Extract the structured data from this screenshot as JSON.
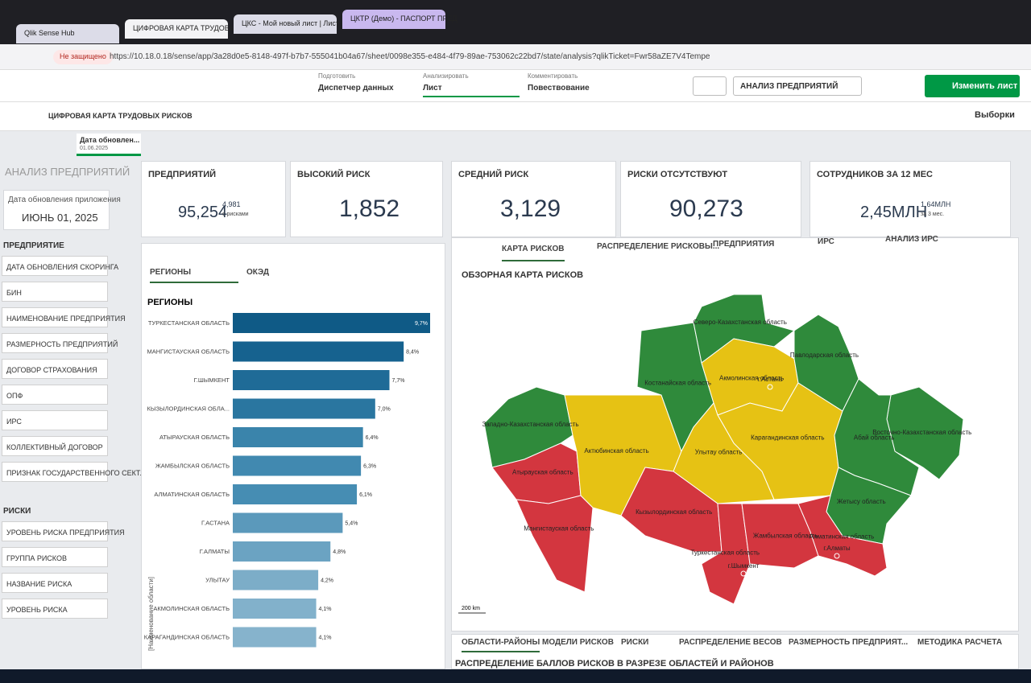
{
  "browser": {
    "tabs": [
      "Qlik Sense Hub",
      "ЦИФРОВАЯ КАРТА ТРУДОВЫ",
      "ЦКС - Мой новый лист | Лист",
      "ЦКТР (Демо) - ПАСПОРТ ПРЕД"
    ],
    "security": "Не защищено",
    "url": "https://10.18.0.18/sense/app/3a28d0e5-8148-497f-b7b7-555041b04a67/sheet/0098e355-e484-4f79-89ae-753062c22bd7/state/analysis?qlikTicket=Fwr58aZE7V4Tempe"
  },
  "toolbar": {
    "modes": [
      {
        "label": "Подготовить",
        "value": "Диспетчер данных"
      },
      {
        "label": "Анализировать",
        "value": "Лист"
      },
      {
        "label": "Комментировать",
        "value": "Повествование"
      }
    ],
    "sheet": "АНАЛИЗ ПРЕДПРИЯТИЙ",
    "edit": "Изменить лист",
    "selections": "Выборки"
  },
  "app": {
    "title": "ЦИФРОВАЯ КАРТА ТРУДОВЫХ РИСКОВ",
    "selection": {
      "field": "Дата обновлен...",
      "value": "01.06.2025"
    }
  },
  "sidebar": {
    "title": "АНАЛИЗ ПРЕДПРИЯТИЙ",
    "date_label": "Дата обновления приложения",
    "date": "ИЮНЬ 01, 2025",
    "groups": [
      {
        "title": "ПРЕДПРИЯТИЕ",
        "items": [
          "ДАТА ОБНОВЛЕНИЯ СКОРИНГА",
          "БИН",
          "НАИМЕНОВАНИЕ ПРЕДПРИЯТИЯ",
          "РАЗМЕРНОСТЬ ПРЕДПРИЯТИЙ",
          "ДОГОВОР СТРАХОВАНИЯ",
          "ОПФ",
          "ИРС",
          "КОЛЛЕКТИВНЫЙ ДОГОВОР",
          "ПРИЗНАК ГОСУДАРСТВЕННОГО СЕКТ..."
        ]
      },
      {
        "title": "РИСКИ",
        "items": [
          "УРОВЕНЬ РИСКА ПРЕДПРИЯТИЯ",
          "ГРУППА РИСКОВ",
          "НАЗВАНИЕ РИСКА",
          "УРОВЕНЬ РИСКА"
        ]
      }
    ]
  },
  "kpis": [
    {
      "title": "ПРЕДПРИЯТИЙ",
      "value": "95,254",
      "extra": "4,981",
      "extra_note": "с рисками"
    },
    {
      "title": "ВЫСОКИЙ РИСК",
      "value": "1,852"
    },
    {
      "title": "СРЕДНИЙ РИСК",
      "value": "3,129"
    },
    {
      "title": "РИСКИ ОТСУТСТВУЮТ",
      "value": "90,273"
    },
    {
      "title": "СОТРУДНИКОВ ЗА 12 МЕС",
      "value": "2,45МЛН",
      "extra": "1,64МЛН",
      "extra_note": "за 3 мес."
    }
  ],
  "bar_panel": {
    "tabs": [
      "РЕГИОНЫ",
      "ОКЭД"
    ]
  },
  "chart_data": {
    "type": "bar",
    "orientation": "horizontal",
    "title": "РЕГИОНЫ",
    "axis_label": "[Наименование области]",
    "categories": [
      "ТУРКЕСТАНСКАЯ ОБЛАСТЬ",
      "МАНГИСТАУСКАЯ ОБЛАСТЬ",
      "Г.ШЫМКЕНТ",
      "КЫЗЫЛОРДИНСКАЯ ОБЛА...",
      "АТЫРАУСКАЯ ОБЛАСТЬ",
      "ЖАМБЫЛСКАЯ ОБЛАСТЬ",
      "АЛМАТИНСКАЯ ОБЛАСТЬ",
      "Г.АСТАНА",
      "Г.АЛМАТЫ",
      "УЛЫТАУ",
      "АКМОЛИНСКАЯ ОБЛАСТЬ",
      "КАРАГАНДИНСКАЯ ОБЛАСТЬ"
    ],
    "values": [
      9.7,
      8.4,
      7.7,
      7.0,
      6.4,
      6.3,
      6.1,
      5.4,
      4.8,
      4.2,
      4.1,
      4.1
    ],
    "value_labels": [
      "9,7%",
      "8,4%",
      "7,7%",
      "7,0%",
      "6,4%",
      "6,3%",
      "6,1%",
      "5,4%",
      "4,8%",
      "4,2%",
      "4,1%",
      "4,1%"
    ],
    "colors": [
      "#0f5a86",
      "#16628f",
      "#1f6b97",
      "#2a76a0",
      "#3a84ab",
      "#4189b0",
      "#468db3",
      "#5b99bb",
      "#6ba3c2",
      "#7cadc8",
      "#82b1cb",
      "#86b3cc"
    ]
  },
  "map_panel": {
    "tabs": [
      "КАРТА РИСКОВ",
      "РАСПРЕДЕЛЕНИЕ РИСКОВЫ...",
      "ПРЕДПРИЯТИЯ",
      "ИРС",
      "АНАЛИЗ ИРС"
    ],
    "title": "ОБЗОРНАЯ КАРТА РИСКОВ",
    "scale": "200 km",
    "regions": [
      {
        "name": "Западно-Казахстанская область",
        "color": "#2f8a3b"
      },
      {
        "name": "Атырауская область",
        "color": "#d3363f"
      },
      {
        "name": "Мангистауская область",
        "color": "#d3363f"
      },
      {
        "name": "Актюбинская область",
        "color": "#e6c214"
      },
      {
        "name": "Костанайская область",
        "color": "#2f8a3b"
      },
      {
        "name": "Северо-Казахстанская область",
        "color": "#2f8a3b"
      },
      {
        "name": "Акмолинская область",
        "color": "#e6c214"
      },
      {
        "name": "Павлодарская область",
        "color": "#2f8a3b"
      },
      {
        "name": "Карагандинская область",
        "color": "#e6c214"
      },
      {
        "name": "Улытау область",
        "color": "#e6c214"
      },
      {
        "name": "Восточно-Казахстанская область",
        "color": "#2f8a3b"
      },
      {
        "name": "Абай область",
        "color": "#2f8a3b"
      },
      {
        "name": "Жетысу область",
        "color": "#2f8a3b"
      },
      {
        "name": "Кызылординская область",
        "color": "#d3363f"
      },
      {
        "name": "Туркестанская область",
        "color": "#d3363f"
      },
      {
        "name": "Жамбылская область",
        "color": "#d3363f"
      },
      {
        "name": "Алматинская область",
        "color": "#d3363f"
      },
      {
        "name": "г.Астана",
        "color": "#e6c214"
      },
      {
        "name": "г.Шымкент",
        "color": "#d3363f"
      },
      {
        "name": "г.Алматы",
        "color": "#d3363f"
      }
    ]
  },
  "bottom": {
    "tabs": [
      "ОБЛАСТИ-РАЙОНЫ",
      "МОДЕЛИ РИСКОВ",
      "РИСКИ",
      "РАСПРЕДЕЛЕНИЕ ВЕСОВ",
      "РАЗМЕРНОСТЬ ПРЕДПРИЯТ...",
      "МЕТОДИКА РАСЧЕТА"
    ],
    "title": "РАСПРЕДЕЛЕНИЕ БАЛЛОВ РИСКОВ В РАЗРЕЗЕ ОБЛАСТЕЙ И РАЙОНОВ"
  }
}
